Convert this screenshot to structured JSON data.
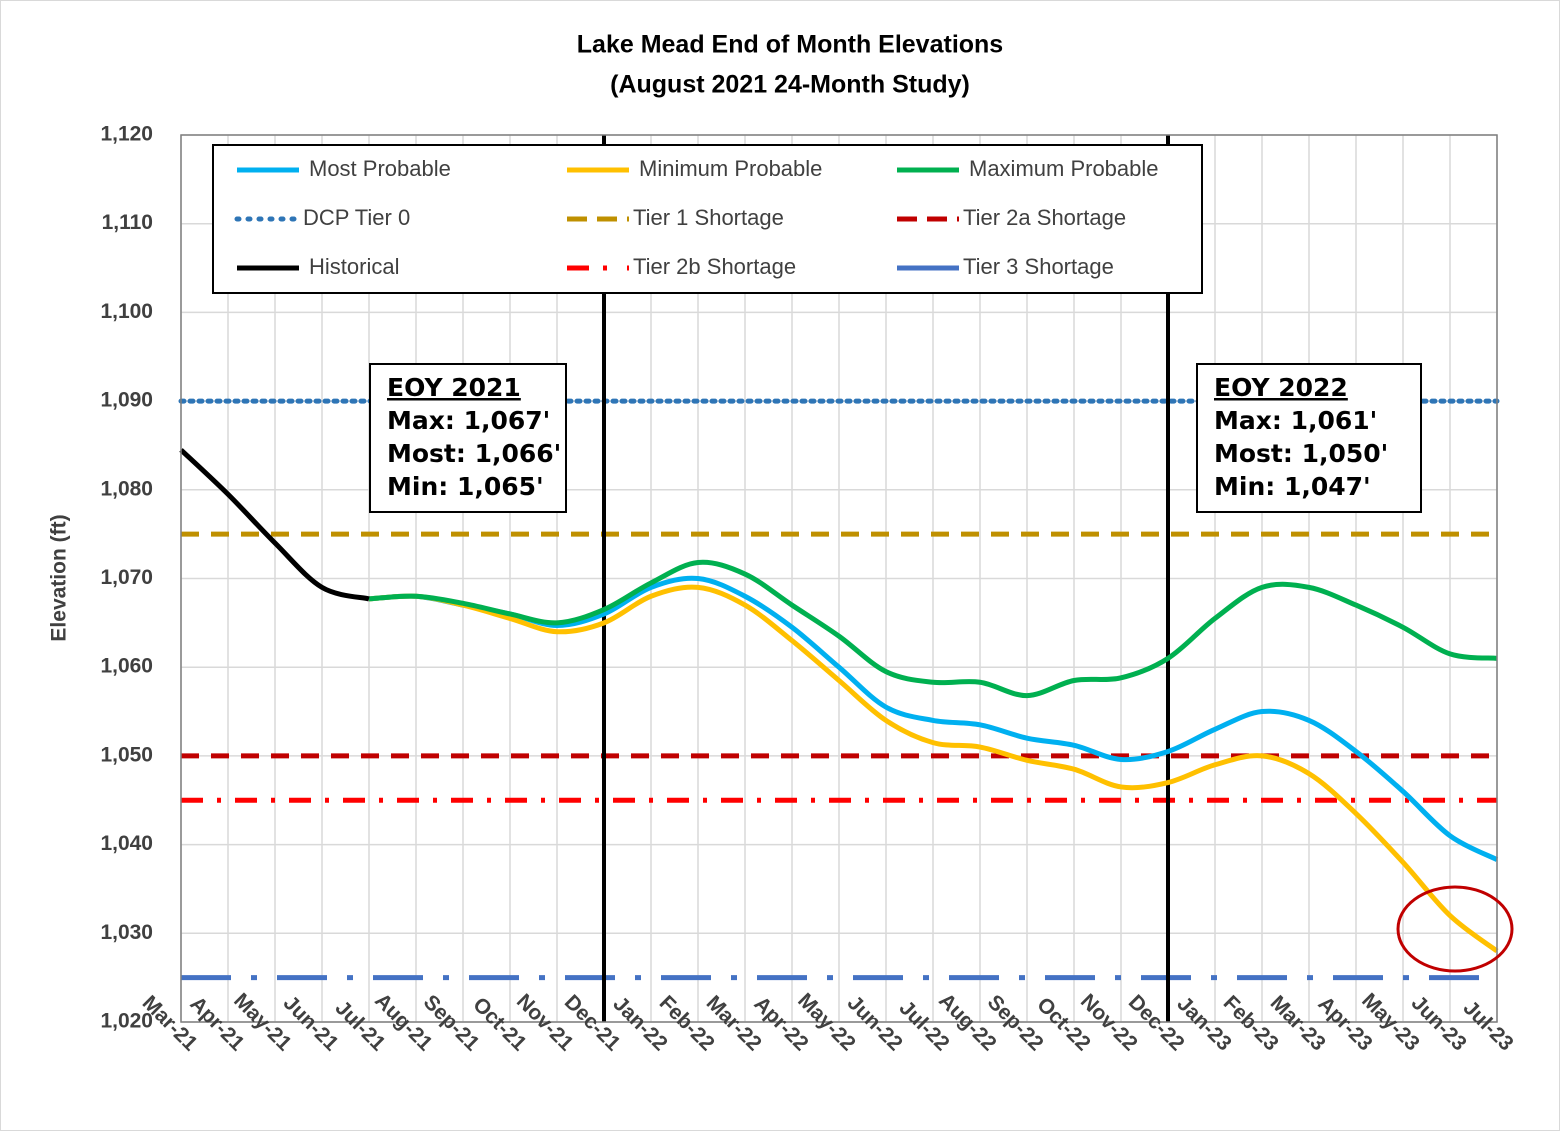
{
  "chart_data": {
    "type": "line",
    "title": "Lake Mead End of Month Elevations",
    "subtitle": "(August 2021 24-Month Study)",
    "y_label": "Elevation (ft)",
    "categories": [
      "Mar-21",
      "Apr-21",
      "May-21",
      "Jun-21",
      "Jul-21",
      "Aug-21",
      "Sep-21",
      "Oct-21",
      "Nov-21",
      "Dec-21",
      "Jan-22",
      "Feb-22",
      "Mar-22",
      "Apr-22",
      "May-22",
      "Jun-22",
      "Jul-22",
      "Aug-22",
      "Sep-22",
      "Oct-22",
      "Nov-22",
      "Dec-22",
      "Jan-23",
      "Feb-23",
      "Mar-23",
      "Apr-23",
      "May-23",
      "Jun-23",
      "Jul-23"
    ],
    "series": [
      {
        "name": "Most Probable",
        "color": "#00b0f0",
        "values": [
          null,
          null,
          null,
          null,
          1067.7,
          1068,
          1067,
          1066,
          1064.7,
          1066,
          1069,
          1070,
          1068,
          1064.5,
          1060,
          1055.5,
          1054,
          1053.5,
          1052,
          1051.2,
          1049.6,
          1050.5,
          1053,
          1055,
          1054,
          1050.5,
          1046,
          1041,
          1038.3
        ]
      },
      {
        "name": "Minimum Probable",
        "color": "#ffc000",
        "values": [
          null,
          null,
          null,
          null,
          1067.7,
          1068,
          1067,
          1065.5,
          1064,
          1065,
          1068,
          1069,
          1067,
          1063,
          1058.5,
          1054,
          1051.5,
          1051,
          1049.5,
          1048.5,
          1046.5,
          1047,
          1049,
          1050,
          1048,
          1043.5,
          1038,
          1032,
          1028
        ]
      },
      {
        "name": "Maximum Probable",
        "color": "#00b050",
        "values": [
          null,
          null,
          null,
          null,
          1067.7,
          1068,
          1067.2,
          1066,
          1065,
          1066.5,
          1069.5,
          1071.8,
          1070.5,
          1067,
          1063.5,
          1059.5,
          1058.3,
          1058.3,
          1056.8,
          1058.5,
          1058.8,
          1061,
          1065.5,
          1069,
          1069,
          1067,
          1064.5,
          1061.5,
          1061
        ]
      },
      {
        "name": "DCP Tier 0",
        "color": "#2e75b6",
        "dash": "dotted",
        "value": 1090
      },
      {
        "name": "Tier 1 Shortage",
        "color": "#bf9000",
        "dash": "dashed",
        "value": 1075
      },
      {
        "name": "Tier 2a Shortage",
        "color": "#c00000",
        "dash": "dashed",
        "value": 1050
      },
      {
        "name": "Historical",
        "color": "#000000",
        "values": [
          1084.5,
          1079.5,
          1074,
          1069,
          1067.7,
          null,
          null,
          null,
          null,
          null,
          null,
          null,
          null,
          null,
          null,
          null,
          null,
          null,
          null,
          null,
          null,
          null,
          null,
          null,
          null,
          null,
          null,
          null,
          null
        ]
      },
      {
        "name": "Tier 2b Shortage",
        "color": "#ff0000",
        "dash": "dashdot",
        "value": 1045
      },
      {
        "name": "Tier 3 Shortage",
        "color": "#4472c4",
        "dash": "longdashdot",
        "value": 1025
      }
    ],
    "vlines": [
      "Dec-21",
      "Dec-22"
    ],
    "annotations": [
      {
        "title": "EOY 2021",
        "lines": [
          "Max: 1,067'",
          "Most: 1,066'",
          "Min: 1,065'"
        ]
      },
      {
        "title": "EOY 2022",
        "lines": [
          "Max: 1,061'",
          "Most: 1,050'",
          "Min: 1,047'"
        ]
      }
    ],
    "ylim": [
      1020,
      1120
    ],
    "yticks": [
      {
        "value": 1020,
        "label": "1,020"
      },
      {
        "value": 1030,
        "label": "1,030"
      },
      {
        "value": 1040,
        "label": "1,040"
      },
      {
        "value": 1050,
        "label": "1,050"
      },
      {
        "value": 1060,
        "label": "1,060"
      },
      {
        "value": 1070,
        "label": "1,070"
      },
      {
        "value": 1080,
        "label": "1,080"
      },
      {
        "value": 1090,
        "label": "1,090"
      },
      {
        "value": 1100,
        "label": "1,100"
      },
      {
        "value": 1110,
        "label": "1,110"
      },
      {
        "value": 1120,
        "label": "1,120"
      }
    ],
    "grid": true
  }
}
